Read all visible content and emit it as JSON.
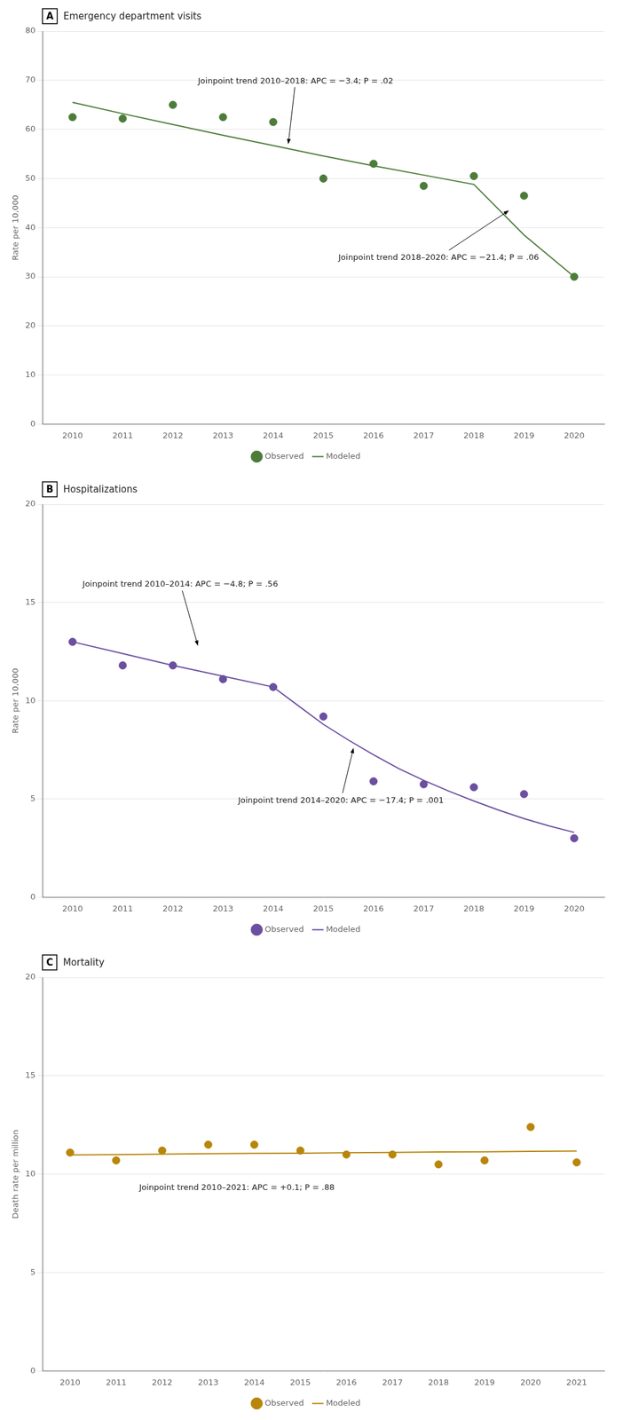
{
  "chart_data": [
    {
      "type": "line",
      "panel_label": "A",
      "title": "Emergency department visits",
      "y_label": "Rate per 10,000",
      "xlim": [
        2009.4,
        2020.6
      ],
      "xticks": [
        2010,
        2011,
        2012,
        2013,
        2014,
        2015,
        2016,
        2017,
        2018,
        2019,
        2020
      ],
      "ylim": [
        0,
        80
      ],
      "yticks": [
        0,
        10,
        20,
        30,
        40,
        50,
        60,
        70,
        80
      ],
      "grid": "y",
      "legend": "bottom",
      "series": [
        {
          "name": "Observed",
          "type": "scatter",
          "marker": "circle",
          "color": "#4d7c3a",
          "x": [
            2010,
            2011,
            2012,
            2013,
            2014,
            2015,
            2016,
            2017,
            2018,
            2019,
            2020
          ],
          "values": [
            62.5,
            62.2,
            65.0,
            62.5,
            61.5,
            50.0,
            53.0,
            48.5,
            50.5,
            46.5,
            30.0
          ]
        },
        {
          "name": "Modeled",
          "type": "line",
          "line_style": "solid",
          "color": "#4d7c3a",
          "x": [
            2010,
            2011,
            2012,
            2013,
            2014,
            2015,
            2016,
            2017,
            2018,
            2018,
            2019,
            2020
          ],
          "values": [
            65.5,
            63.2,
            61.0,
            58.8,
            56.7,
            54.6,
            52.6,
            50.7,
            48.8,
            48.8,
            38.5,
            30.0
          ]
        }
      ],
      "annotations": [
        {
          "text": "Joinpoint trend 2010–2018: APC = −3.4; P = .02",
          "x": 2012.5,
          "y": 69.0,
          "arrow_x": 2014.3,
          "arrow_y": 57.0
        },
        {
          "text": "Joinpoint trend 2018–2020: APC = −21.4; P = .06",
          "x": 2015.3,
          "y": 33.0,
          "arrow_x": 2018.7,
          "arrow_y": 43.5
        }
      ]
    },
    {
      "type": "line",
      "panel_label": "B",
      "title": "Hospitalizations",
      "y_label": "Rate per 10,000",
      "xlim": [
        2009.4,
        2020.6
      ],
      "xticks": [
        2010,
        2011,
        2012,
        2013,
        2014,
        2015,
        2016,
        2017,
        2018,
        2019,
        2020
      ],
      "ylim": [
        0,
        20
      ],
      "yticks": [
        0,
        5,
        10,
        15,
        20
      ],
      "grid": "y",
      "legend": "bottom",
      "series": [
        {
          "name": "Observed",
          "type": "scatter",
          "marker": "circle",
          "color": "#6b4fa0",
          "x": [
            2010,
            2011,
            2012,
            2013,
            2014,
            2015,
            2016,
            2017,
            2018,
            2019,
            2020
          ],
          "values": [
            13.0,
            11.8,
            11.8,
            11.1,
            10.7,
            9.2,
            5.9,
            5.75,
            5.6,
            5.25,
            3.0
          ]
        },
        {
          "name": "Modeled",
          "type": "line",
          "line_style": "solid",
          "color": "#6b4fa0",
          "x": [
            2010,
            2011,
            2012,
            2013,
            2014,
            2014,
            2014.5,
            2015,
            2015.5,
            2016,
            2016.5,
            2017,
            2017.5,
            2018,
            2018.5,
            2019,
            2019.5,
            2020
          ],
          "values": [
            13.0,
            12.4,
            11.8,
            11.25,
            10.7,
            10.7,
            9.75,
            8.8,
            8.0,
            7.25,
            6.55,
            5.95,
            5.4,
            4.9,
            4.43,
            4.0,
            3.63,
            3.3
          ]
        }
      ],
      "annotations": [
        {
          "text": "Joinpoint trend 2010–2014: APC = −4.8; P = .56",
          "x": 2010.2,
          "y": 15.7,
          "arrow_x": 2012.5,
          "arrow_y": 12.8
        },
        {
          "text": "Joinpoint trend 2014–2020: APC = −17.4; P = .001",
          "x": 2013.3,
          "y": 4.7,
          "arrow_x": 2015.6,
          "arrow_y": 7.6
        }
      ]
    },
    {
      "type": "line",
      "panel_label": "C",
      "title": "Mortality",
      "y_label": "Death rate per million",
      "xlim": [
        2009.4,
        2021.6
      ],
      "xticks": [
        2010,
        2011,
        2012,
        2013,
        2014,
        2015,
        2016,
        2017,
        2018,
        2019,
        2020,
        2021
      ],
      "ylim": [
        0,
        20
      ],
      "yticks": [
        0,
        5,
        10,
        15,
        20
      ],
      "grid": "y",
      "legend": "bottom",
      "series": [
        {
          "name": "Observed",
          "type": "scatter",
          "marker": "circle",
          "color": "#b8860b",
          "x": [
            2010,
            2011,
            2012,
            2013,
            2014,
            2015,
            2016,
            2017,
            2018,
            2019,
            2020,
            2021
          ],
          "values": [
            11.1,
            10.7,
            11.2,
            11.5,
            11.5,
            11.2,
            11.0,
            11.0,
            10.5,
            10.7,
            12.4,
            10.6
          ]
        },
        {
          "name": "Modeled",
          "type": "line",
          "line_style": "solid",
          "color": "#b8860b",
          "x": [
            2010,
            2011,
            2012,
            2013,
            2014,
            2015,
            2016,
            2017,
            2018,
            2019,
            2020,
            2021
          ],
          "values": [
            10.98,
            11.0,
            11.02,
            11.04,
            11.06,
            11.07,
            11.09,
            11.11,
            11.13,
            11.14,
            11.16,
            11.18
          ]
        }
      ],
      "annotations": [
        {
          "text": "Joinpoint trend 2010–2021: APC = +0.1; P = .88",
          "x": 2011.5,
          "y": 9.3
        }
      ]
    }
  ]
}
